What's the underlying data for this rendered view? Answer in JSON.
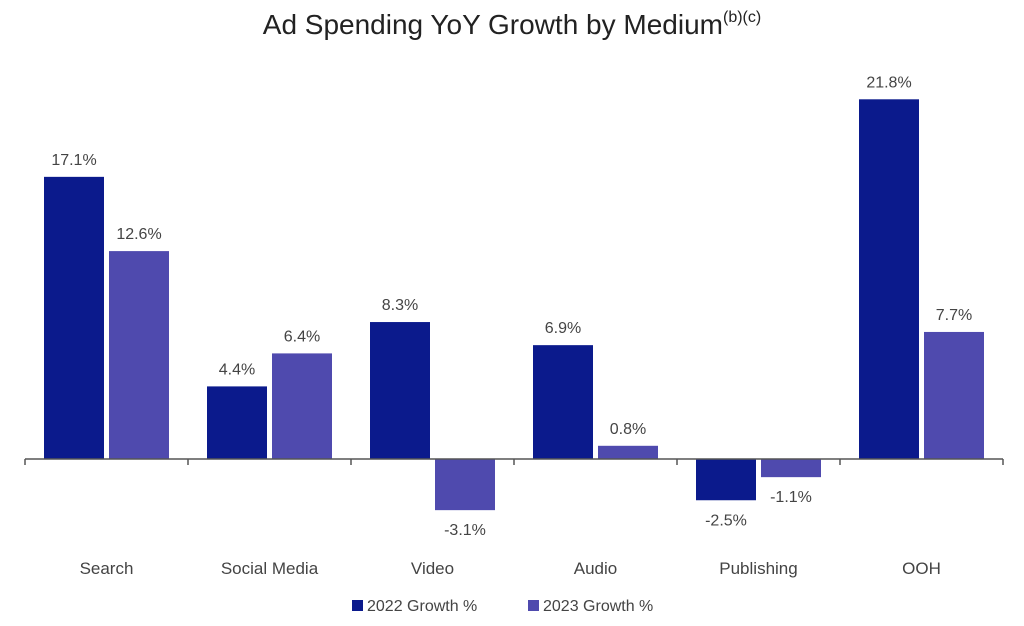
{
  "chart_data": {
    "type": "bar",
    "title": "Ad Spending YoY Growth by Medium",
    "title_superscript": "(b)(c)",
    "categories": [
      "Search",
      "Social Media",
      "Video",
      "Audio",
      "Publishing",
      "OOH"
    ],
    "series": [
      {
        "name": "2022 Growth %",
        "color": "#0b1a8c",
        "values": [
          17.1,
          4.4,
          8.3,
          6.9,
          -2.5,
          21.8
        ],
        "labels": [
          "17.1%",
          "4.4%",
          "8.3%",
          "6.9%",
          "-2.5%",
          "21.8%"
        ]
      },
      {
        "name": "2023 Growth %",
        "color": "#4f4aae",
        "values": [
          12.6,
          6.4,
          -3.1,
          0.8,
          -1.1,
          7.7
        ],
        "labels": [
          "12.6%",
          "6.4%",
          "-3.1%",
          "0.8%",
          "-1.1%",
          "7.7%"
        ]
      }
    ],
    "xlabel": "",
    "ylabel": "",
    "ylim": [
      -5,
      24
    ],
    "grid": false,
    "y_axis_visible": false,
    "legend_position": "bottom"
  }
}
